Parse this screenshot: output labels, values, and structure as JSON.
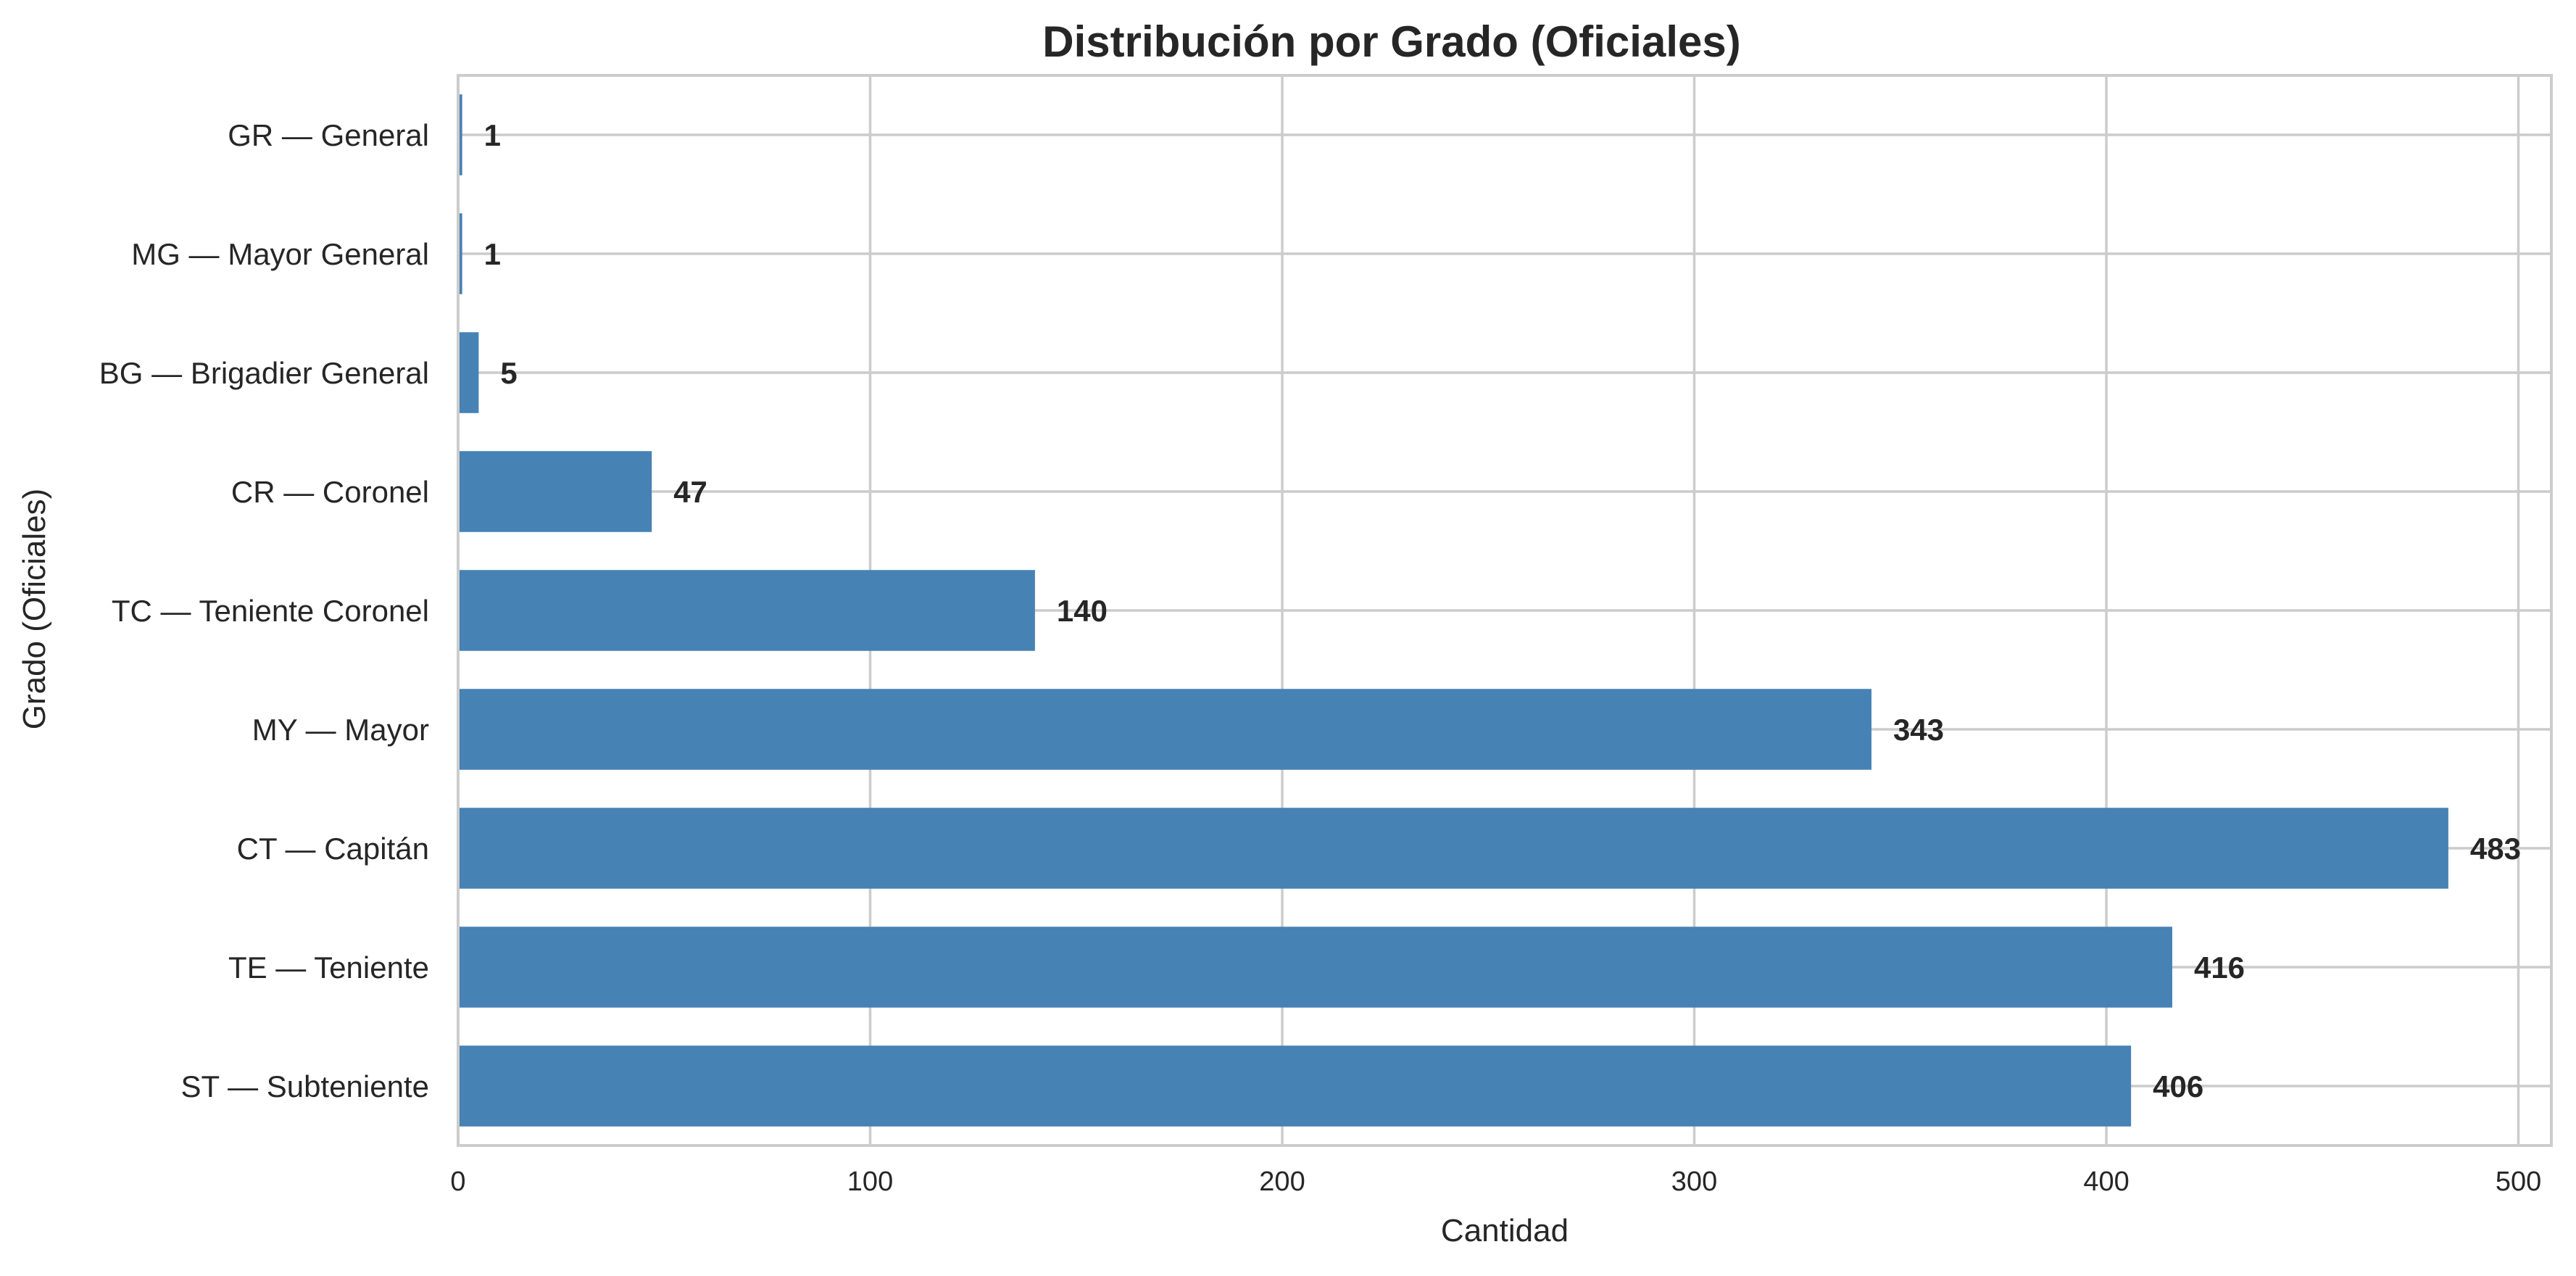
{
  "chart_data": {
    "type": "bar",
    "orientation": "horizontal",
    "title": "Distribución por Grado (Oficiales)",
    "xlabel": "Cantidad",
    "ylabel": "Grado (Oficiales)",
    "categories": [
      "GR — General",
      "MG — Mayor General",
      "BG — Brigadier General",
      "CR — Coronel",
      "TC — Teniente Coronel",
      "MY — Mayor",
      "CT — Capitán",
      "TE — Teniente",
      "ST — Subteniente"
    ],
    "values": [
      1,
      1,
      5,
      47,
      140,
      343,
      483,
      416,
      406
    ],
    "data_labels": [
      "1",
      "1",
      "5",
      "47",
      "140",
      "343",
      "483",
      "416",
      "406"
    ],
    "xlim": [
      0,
      508
    ],
    "xticks": [
      0,
      100,
      200,
      300,
      400,
      500
    ],
    "xtick_labels": [
      "0",
      "100",
      "200",
      "300",
      "400",
      "500"
    ],
    "grid": true,
    "legend": "none",
    "bar_color": "#4682B4"
  }
}
